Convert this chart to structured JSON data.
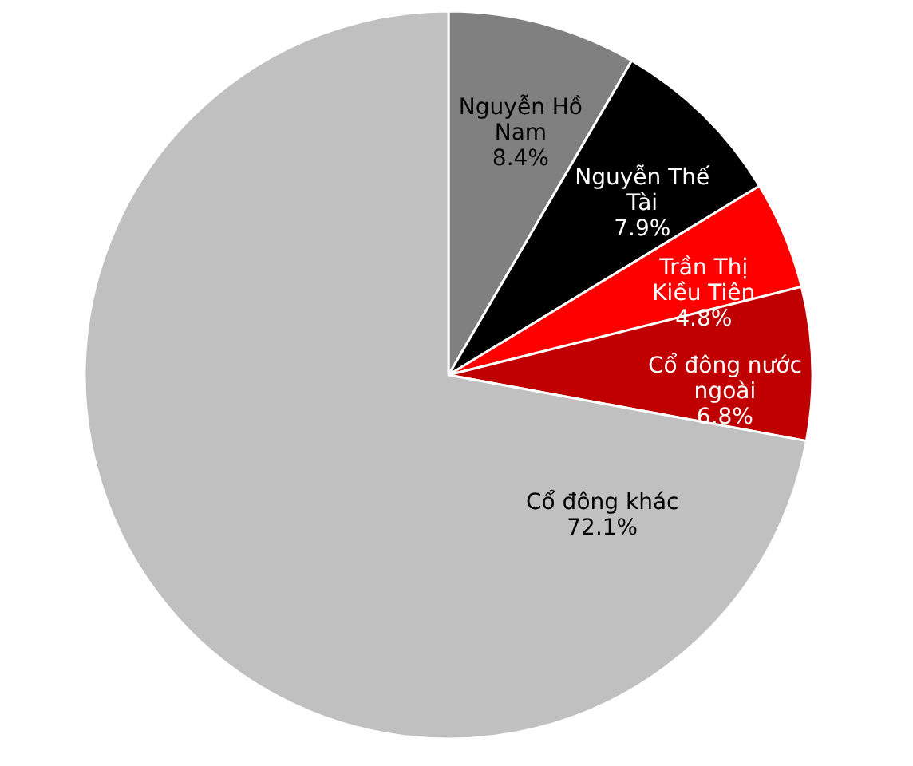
{
  "chart_data": {
    "type": "pie",
    "categories": [
      "Nguyễn Hồ Nam",
      "Nguyễn Thế Tài",
      "Trần Thị Kiều Tiên",
      "Cổ đông nước ngoài",
      "Cổ đông khác"
    ],
    "values": [
      8.4,
      7.9,
      4.8,
      6.8,
      72.1
    ],
    "colors": [
      "#808080",
      "#000000",
      "#ff0000",
      "#c00000",
      "#c0c0c0"
    ],
    "value_labels": [
      "8.4%",
      "7.9%",
      "4.8%",
      "6.8%",
      "72.1%"
    ]
  }
}
